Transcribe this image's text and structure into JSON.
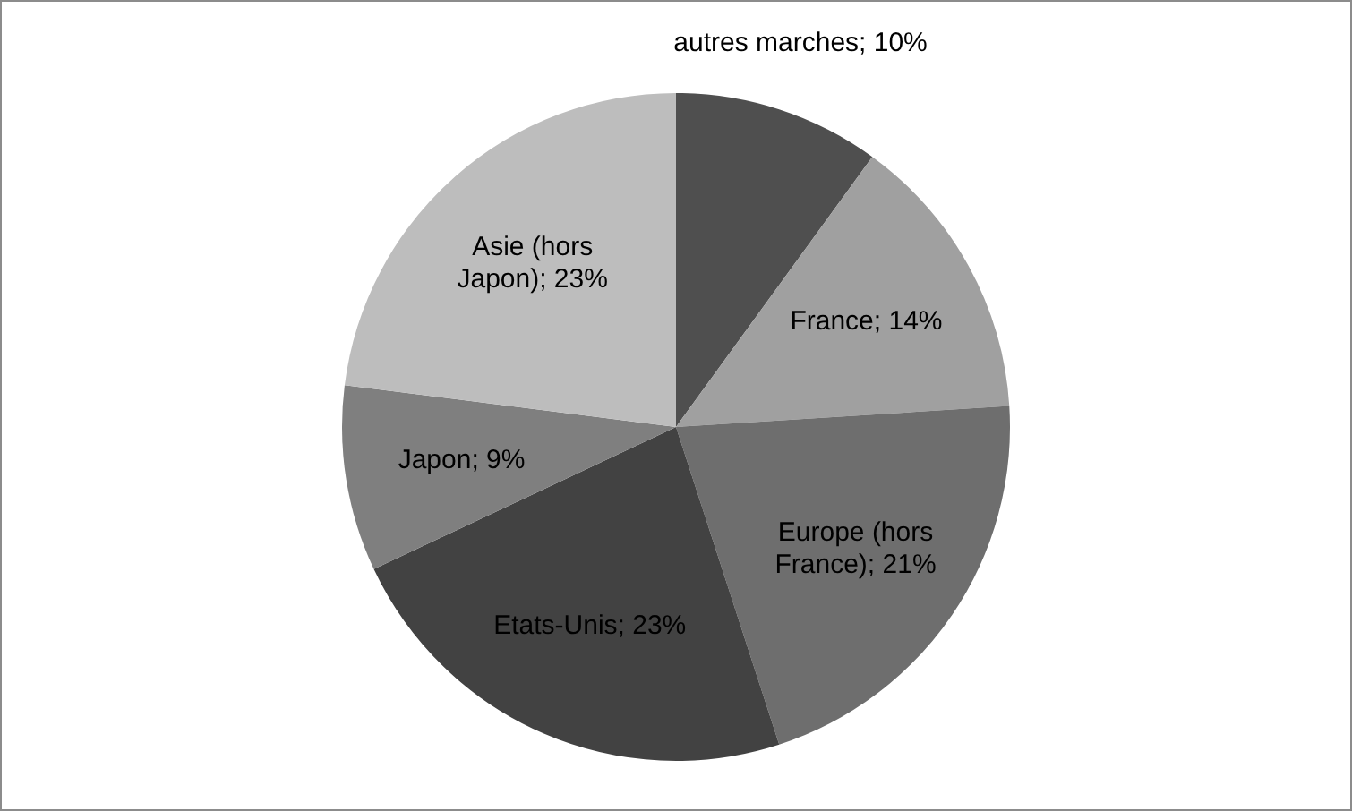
{
  "chart_data": {
    "type": "pie",
    "categories": [
      "autres marches",
      "France",
      "Europe (hors France)",
      "Etats-Unis",
      "Japon",
      "Asie (hors Japon)"
    ],
    "values": [
      10,
      14,
      21,
      23,
      9,
      23
    ],
    "colors": [
      "#4f4f4f",
      "#a0a0a0",
      "#6e6e6e",
      "#424242",
      "#7f7f7f",
      "#bdbdbd"
    ],
    "value_labels": [
      "10%",
      "14%",
      "21%",
      "23%",
      "9%",
      "23%"
    ]
  }
}
